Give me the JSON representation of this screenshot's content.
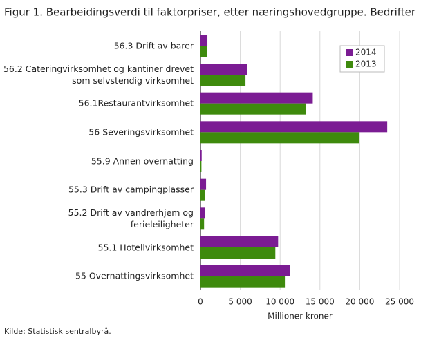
{
  "chart_data": {
    "type": "barh",
    "title": "Figur 1. Bearbeidingsverdi til faktorpriser, etter næringshovedgruppe. Bedrifter",
    "x_label": "Millioner kroner",
    "source": "Kilde: Statistisk sentralbyrå.",
    "categories": [
      "56.3 Drift av barer",
      "56.2 Cateringvirksomhet og kantiner drevet som selvstendig virksomhet",
      "56.1Restaurantvirksomhet",
      "56 Severingsvirksomhet",
      "55.9 Annen overnatting",
      "55.3 Drift av campingplasser",
      "55.2 Drift av vandrerhjem og ferieleiligheter",
      "55.1 Hotellvirksomhet",
      "55 Overnattingsvirksomhet"
    ],
    "series": [
      {
        "name": "2014",
        "color": "#7b1c93",
        "values": [
          870,
          5900,
          14100,
          23450,
          150,
          700,
          550,
          9750,
          11200
        ]
      },
      {
        "name": "2013",
        "color": "#3e8a0d",
        "values": [
          800,
          5650,
          13200,
          19950,
          120,
          600,
          450,
          9400,
          10600
        ]
      }
    ],
    "xlim": [
      0,
      25000
    ],
    "xticks": [
      0,
      {
        "value": 5000,
        "label": "5 000"
      },
      {
        "value": 10000,
        "label": "10 000"
      },
      {
        "value": 15000,
        "label": "15 000"
      },
      {
        "value": 20000,
        "label": "20 000"
      },
      {
        "value": 25000,
        "label": "25 000"
      }
    ],
    "grid": true,
    "legend": "top-right"
  }
}
